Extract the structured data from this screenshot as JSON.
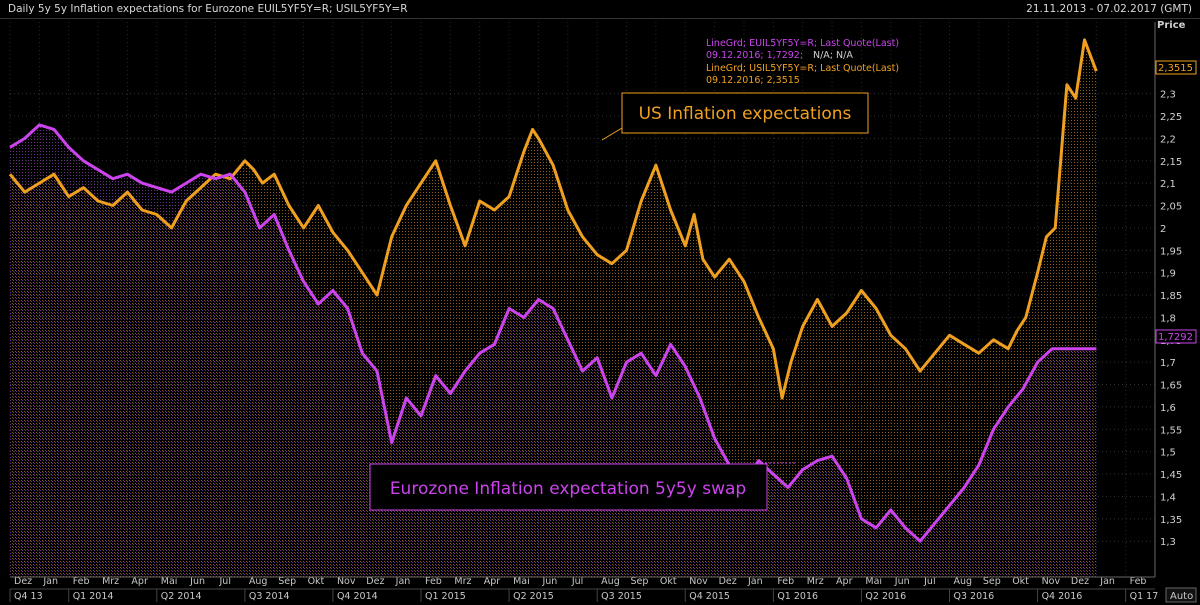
{
  "header": {
    "title": "Daily 5y 5y Inflation expectations for Eurozone EUIL5YF5Y=R; USIL5YF5Y=R",
    "range": "21.11.2013 - 07.02.2017 (GMT)"
  },
  "axis": {
    "price_label": "Price",
    "auto_label": "Auto"
  },
  "legend": {
    "eu_line1": "LineGrd; EUIL5YF5Y=R; Last Quote(Last)",
    "eu_date": "09.12.2016; 1,7292;",
    "eu_na": "N/A; N/A",
    "us_line1": "LineGrd; USIL5YF5Y=R; Last Quote(Last)",
    "us_line2": "09.12.2016; 2,3515"
  },
  "annotations": {
    "us": "US Inflation expectations",
    "eu": "Eurozone Inflation expectation 5y5y swap"
  },
  "last_tags": {
    "us": "2,3515",
    "eu": "1,7292"
  },
  "colors": {
    "us": "#f0a020",
    "eu": "#cc44ee",
    "bg": "#000000",
    "grid": "#3a3a3a"
  },
  "chart_data": {
    "type": "line",
    "title": "Daily 5y 5y Inflation expectations for Eurozone EUIL5YF5Y=R; USIL5YF5Y=R",
    "ylabel": "Price",
    "ylim": [
      1.22,
      2.46
    ],
    "yticks": [
      1.3,
      1.35,
      1.4,
      1.45,
      1.5,
      1.55,
      1.6,
      1.65,
      1.7,
      1.75,
      1.8,
      1.85,
      1.9,
      1.95,
      2.0,
      2.05,
      2.1,
      2.15,
      2.2,
      2.25,
      2.3
    ],
    "ytick_labels": [
      "1,3",
      "1,35",
      "1,4",
      "1,45",
      "1,5",
      "1,55",
      "1,6",
      "1,65",
      "1,7",
      "1,75",
      "1,8",
      "1,85",
      "1,9",
      "1,95",
      "2",
      "2,05",
      "2,1",
      "2,15",
      "2,2",
      "2,25",
      "2,3"
    ],
    "x_start": -1,
    "x_end": 38,
    "month_labels": [
      "Dez",
      "Jan",
      "Feb",
      "Mrz",
      "Apr",
      "Mai",
      "Jun",
      "Jul",
      "Aug",
      "Sep",
      "Okt",
      "Nov",
      "Dez",
      "Jan",
      "Feb",
      "Mrz",
      "Apr",
      "Mai",
      "Jun",
      "Jul",
      "Aug",
      "Sep",
      "Okt",
      "Nov",
      "Dez",
      "Jan",
      "Feb",
      "Mrz",
      "Apr",
      "Mai",
      "Jun",
      "Jul",
      "Aug",
      "Sep",
      "Okt",
      "Nov",
      "Dez",
      "Jan",
      "Feb"
    ],
    "quarters": [
      {
        "label": "Q4 13",
        "x": -1
      },
      {
        "label": "Q1 2014",
        "x": 1
      },
      {
        "label": "Q2 2014",
        "x": 4
      },
      {
        "label": "Q3 2014",
        "x": 7
      },
      {
        "label": "Q4 2014",
        "x": 10
      },
      {
        "label": "Q1 2015",
        "x": 13
      },
      {
        "label": "Q2 2015",
        "x": 16
      },
      {
        "label": "Q3 2015",
        "x": 19
      },
      {
        "label": "Q4 2015",
        "x": 22
      },
      {
        "label": "Q1 2016",
        "x": 25
      },
      {
        "label": "Q2 2016",
        "x": 28
      },
      {
        "label": "Q3 2016",
        "x": 31
      },
      {
        "label": "Q4 2016",
        "x": 34
      },
      {
        "label": "Q1 17",
        "x": 37
      }
    ],
    "series": [
      {
        "name": "USIL5YF5Y=R",
        "x": [
          -1,
          -0.5,
          0,
          0.5,
          1,
          1.5,
          2,
          2.5,
          3,
          3.5,
          4,
          4.5,
          5,
          5.5,
          6,
          6.5,
          7,
          7.3,
          7.6,
          8,
          8.5,
          9,
          9.5,
          10,
          10.5,
          11,
          11.5,
          12,
          12.5,
          13,
          13.5,
          14,
          14.5,
          15,
          15.5,
          16,
          16.5,
          16.8,
          17,
          17.5,
          18,
          18.5,
          19,
          19.5,
          20,
          20.5,
          21,
          21.5,
          22,
          22.3,
          22.6,
          23,
          23.5,
          24,
          24.5,
          25,
          25.3,
          25.6,
          26,
          26.5,
          27,
          27.5,
          28,
          28.5,
          29,
          29.5,
          30,
          30.5,
          31,
          31.5,
          32,
          32.5,
          33,
          33.3,
          33.6,
          34,
          34.3,
          34.6,
          35,
          35.3,
          35.6,
          36
        ],
        "values": [
          2.12,
          2.08,
          2.1,
          2.12,
          2.07,
          2.09,
          2.06,
          2.05,
          2.08,
          2.04,
          2.03,
          2.0,
          2.06,
          2.09,
          2.12,
          2.11,
          2.15,
          2.13,
          2.1,
          2.12,
          2.05,
          2.0,
          2.05,
          1.99,
          1.95,
          1.9,
          1.85,
          1.98,
          2.05,
          2.1,
          2.15,
          2.05,
          1.96,
          2.06,
          2.04,
          2.07,
          2.17,
          2.22,
          2.2,
          2.14,
          2.04,
          1.98,
          1.94,
          1.92,
          1.95,
          2.06,
          2.14,
          2.04,
          1.96,
          2.03,
          1.93,
          1.89,
          1.93,
          1.88,
          1.8,
          1.73,
          1.62,
          1.7,
          1.78,
          1.84,
          1.78,
          1.81,
          1.86,
          1.82,
          1.76,
          1.73,
          1.68,
          1.72,
          1.76,
          1.74,
          1.72,
          1.75,
          1.73,
          1.77,
          1.8,
          1.9,
          1.98,
          2.0,
          2.32,
          2.29,
          2.42,
          2.35
        ]
      },
      {
        "name": "EUIL5YF5Y=R",
        "x": [
          -1,
          -0.5,
          0,
          0.5,
          1,
          1.5,
          2,
          2.5,
          3,
          3.5,
          4,
          4.5,
          5,
          5.5,
          6,
          6.5,
          7,
          7.5,
          8,
          8.5,
          9,
          9.5,
          10,
          10.5,
          11,
          11.5,
          12,
          12.5,
          13,
          13.5,
          14,
          14.5,
          15,
          15.5,
          16,
          16.5,
          17,
          17.5,
          18,
          18.5,
          19,
          19.5,
          20,
          20.5,
          21,
          21.5,
          22,
          22.5,
          23,
          23.5,
          24,
          24.5,
          25,
          25.5,
          26,
          26.5,
          27,
          27.5,
          28,
          28.5,
          29,
          29.5,
          30,
          30.5,
          31,
          31.5,
          32,
          32.5,
          33,
          33.5,
          34,
          34.5,
          35,
          35.3,
          35.6,
          36
        ],
        "values": [
          2.18,
          2.2,
          2.23,
          2.22,
          2.18,
          2.15,
          2.13,
          2.11,
          2.12,
          2.1,
          2.09,
          2.08,
          2.1,
          2.12,
          2.11,
          2.12,
          2.08,
          2.0,
          2.03,
          1.95,
          1.88,
          1.83,
          1.86,
          1.82,
          1.72,
          1.68,
          1.52,
          1.62,
          1.58,
          1.67,
          1.63,
          1.68,
          1.72,
          1.74,
          1.82,
          1.8,
          1.84,
          1.82,
          1.75,
          1.68,
          1.71,
          1.62,
          1.7,
          1.72,
          1.67,
          1.74,
          1.69,
          1.62,
          1.53,
          1.47,
          1.43,
          1.48,
          1.45,
          1.42,
          1.46,
          1.48,
          1.49,
          1.44,
          1.35,
          1.33,
          1.37,
          1.33,
          1.3,
          1.34,
          1.38,
          1.42,
          1.47,
          1.55,
          1.6,
          1.64,
          1.7,
          1.73,
          1.73,
          1.73,
          1.73,
          1.73
        ]
      }
    ]
  }
}
